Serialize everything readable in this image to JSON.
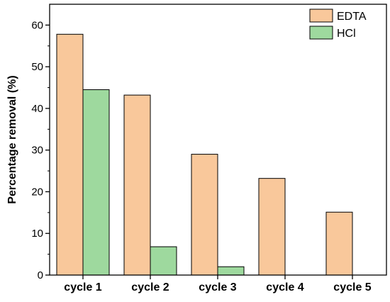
{
  "chart_data": {
    "type": "bar",
    "categories": [
      "cycle 1",
      "cycle 2",
      "cycle 3",
      "cycle 4",
      "cycle 5"
    ],
    "series": [
      {
        "name": "EDTA",
        "values": [
          57.8,
          43.2,
          29.0,
          23.2,
          15.1
        ],
        "color": "#f9c89b"
      },
      {
        "name": "HCl",
        "values": [
          44.5,
          6.8,
          2.0,
          null,
          null
        ],
        "color": "#9ed99e"
      }
    ],
    "xlabel": "",
    "ylabel": "Percentage removal (%)",
    "ylim": [
      0,
      65
    ],
    "yticks": [
      0,
      10,
      20,
      30,
      40,
      50,
      60
    ],
    "grid": false,
    "legend_position": "top-right"
  }
}
